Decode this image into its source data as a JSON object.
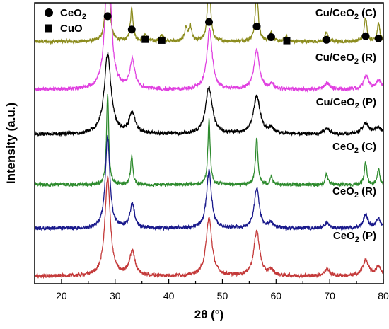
{
  "chart_data": {
    "type": "line",
    "title": "",
    "xlabel": "2θ (°)",
    "ylabel": "Intensity (a.u.)",
    "xlim": [
      15,
      80
    ],
    "x_ticks": [
      20,
      30,
      40,
      50,
      60,
      70,
      80
    ],
    "y_ticks_shown": false,
    "grid": false,
    "legend": {
      "placement": "top-left",
      "entries": [
        {
          "marker": "circle",
          "label": "CeO",
          "sub": "2"
        },
        {
          "marker": "square",
          "label": "CuO",
          "sub": ""
        }
      ]
    },
    "series": [
      {
        "name": "Cu/CeO2 (C)",
        "label_pre": "Cu/CeO",
        "label_sub": "2",
        "label_post": " (C)",
        "color": "#8c8c1e",
        "offset": 5,
        "baseline": 0.38,
        "peaks": [
          [
            28.6,
            2.9,
            0.28
          ],
          [
            33.1,
            0.75,
            0.3
          ],
          [
            35.6,
            0.15,
            0.35
          ],
          [
            38.7,
            0.15,
            0.35
          ],
          [
            43.2,
            0.3,
            0.3
          ],
          [
            44.0,
            0.35,
            0.3
          ],
          [
            47.5,
            1.6,
            0.3
          ],
          [
            56.4,
            1.15,
            0.32
          ],
          [
            59.1,
            0.2,
            0.3
          ],
          [
            62.0,
            0.1,
            0.3
          ],
          [
            69.4,
            0.22,
            0.3
          ],
          [
            76.7,
            0.55,
            0.3
          ],
          [
            79.1,
            0.4,
            0.3
          ]
        ],
        "markers": [
          {
            "type": "circle",
            "x": 28.6,
            "y": 5.95
          },
          {
            "type": "circle",
            "x": 33.1,
            "y": 5.65
          },
          {
            "type": "square",
            "x": 35.6,
            "y": 5.43
          },
          {
            "type": "square",
            "x": 38.7,
            "y": 5.41
          },
          {
            "type": "circle",
            "x": 47.5,
            "y": 5.82
          },
          {
            "type": "circle",
            "x": 56.4,
            "y": 5.72
          },
          {
            "type": "circle",
            "x": 59.1,
            "y": 5.48
          },
          {
            "type": "square",
            "x": 62.0,
            "y": 5.4
          },
          {
            "type": "circle",
            "x": 69.4,
            "y": 5.42
          },
          {
            "type": "circle",
            "x": 76.7,
            "y": 5.5
          },
          {
            "type": "circle",
            "x": 79.1,
            "y": 5.45
          }
        ]
      },
      {
        "name": "Cu/CeO2 (R)",
        "label_pre": "Cu/CeO",
        "label_sub": "2",
        "label_post": " (R)",
        "color": "#e040e0",
        "offset": 4,
        "baseline": 0.3,
        "peaks": [
          [
            28.7,
            3.3,
            0.6
          ],
          [
            33.2,
            0.65,
            0.55
          ],
          [
            47.6,
            1.35,
            0.6
          ],
          [
            56.4,
            0.9,
            0.6
          ],
          [
            59.2,
            0.12,
            0.5
          ],
          [
            69.5,
            0.15,
            0.6
          ],
          [
            76.8,
            0.3,
            0.6
          ],
          [
            79.2,
            0.2,
            0.6
          ]
        ]
      },
      {
        "name": "Cu/CeO2 (P)",
        "label_pre": "Cu/CeO",
        "label_sub": "2",
        "label_post": " (P)",
        "color": "#000000",
        "offset": 3,
        "baseline": 0.3,
        "peaks": [
          [
            28.6,
            1.8,
            0.75
          ],
          [
            33.2,
            0.45,
            0.7
          ],
          [
            47.5,
            1.05,
            0.75
          ],
          [
            56.4,
            0.85,
            0.75
          ],
          [
            59.1,
            0.12,
            0.6
          ],
          [
            69.5,
            0.12,
            0.7
          ],
          [
            76.7,
            0.25,
            0.7
          ],
          [
            79.1,
            0.15,
            0.7
          ]
        ]
      },
      {
        "name": "CeO2 (C)",
        "label_pre": "CeO",
        "label_sub": "2",
        "label_post": " (C)",
        "color": "#2e8b2e",
        "offset": 2,
        "baseline": 0.17,
        "peaks": [
          [
            28.6,
            2.05,
            0.25
          ],
          [
            33.1,
            0.65,
            0.25
          ],
          [
            47.5,
            1.45,
            0.26
          ],
          [
            56.4,
            1.05,
            0.27
          ],
          [
            59.1,
            0.18,
            0.25
          ],
          [
            69.4,
            0.25,
            0.27
          ],
          [
            76.7,
            0.5,
            0.27
          ],
          [
            79.1,
            0.35,
            0.27
          ]
        ]
      },
      {
        "name": "CeO2 (R)",
        "label_pre": "CeO",
        "label_sub": "2",
        "label_post": " (R)",
        "color": "#1a1a8c",
        "offset": 1,
        "baseline": 0.19,
        "peaks": [
          [
            28.6,
            2.05,
            0.5
          ],
          [
            33.2,
            0.55,
            0.5
          ],
          [
            47.5,
            1.3,
            0.55
          ],
          [
            56.4,
            0.9,
            0.55
          ],
          [
            59.1,
            0.12,
            0.5
          ],
          [
            69.5,
            0.12,
            0.5
          ],
          [
            76.7,
            0.3,
            0.55
          ],
          [
            79.1,
            0.2,
            0.55
          ]
        ]
      },
      {
        "name": "CeO2 (P)",
        "label_pre": "CeO",
        "label_sub": "2",
        "label_post": " (P)",
        "color": "#c43a3a",
        "offset": 0,
        "baseline": 0.12,
        "peaks": [
          [
            28.6,
            2.2,
            0.6
          ],
          [
            33.2,
            0.55,
            0.6
          ],
          [
            47.5,
            1.3,
            0.65
          ],
          [
            56.4,
            1.0,
            0.65
          ],
          [
            59.1,
            0.12,
            0.55
          ],
          [
            69.5,
            0.15,
            0.6
          ],
          [
            76.7,
            0.35,
            0.65
          ],
          [
            79.1,
            0.2,
            0.6
          ]
        ]
      }
    ]
  }
}
